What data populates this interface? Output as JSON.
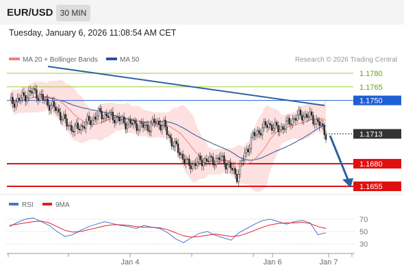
{
  "header": {
    "symbol": "EUR/USD",
    "timeframe": "30 MIN",
    "datetime": "Tuesday, January 6, 2026 11:08:54 AM CET"
  },
  "legend": {
    "ma20_label": "MA 20 + Bollinger Bands",
    "ma50_label": "MA 50",
    "copyright": "Research © 2026 Trading Central"
  },
  "rsi_legend": {
    "rsi_label": "RSI",
    "ma_label": "9MA"
  },
  "colors": {
    "ma20": "#f08080",
    "ma50": "#2f4f9a",
    "bollinger_fill": "#fde0e0",
    "resistance_green": "#9acd32",
    "resistance_blue": "#1f5fd6",
    "support_red": "#e01010",
    "current_price_bg": "#333333",
    "trend_arrow": "#2f5fa0",
    "rsi_line": "#4a72d0",
    "rsi_ma_line": "#e02020",
    "candle": "#222222"
  },
  "chart_data": [
    {
      "type": "line",
      "title": "",
      "instrument": "EUR/USD",
      "interval": "30 MIN",
      "x_ticks": [
        "Jan 4",
        "Jan 6",
        "Jan 7"
      ],
      "ylim": [
        1.164,
        1.18
      ],
      "price_levels": [
        {
          "label": "1.1780",
          "value": 1.178,
          "kind": "resistance",
          "color": "#9acd32"
        },
        {
          "label": "1.1765",
          "value": 1.1765,
          "kind": "resistance",
          "color": "#9acd32"
        },
        {
          "label": "1.1750",
          "value": 1.175,
          "kind": "resistance",
          "color": "#1f5fd6"
        },
        {
          "label": "1.1713",
          "value": 1.1713,
          "kind": "current",
          "color": "#333333"
        },
        {
          "label": "1.1680",
          "value": 1.168,
          "kind": "support",
          "color": "#e01010"
        },
        {
          "label": "1.1655",
          "value": 1.1655,
          "kind": "support",
          "color": "#e01010"
        }
      ],
      "series": [
        {
          "name": "MA 20 + Bollinger Bands",
          "color": "#f08080"
        },
        {
          "name": "MA 50",
          "color": "#2f4f9a"
        }
      ],
      "price_path": [
        1.1747,
        1.175,
        1.1756,
        1.176,
        1.1752,
        1.1745,
        1.1738,
        1.1724,
        1.1718,
        1.1722,
        1.1728,
        1.1735,
        1.1733,
        1.1731,
        1.1726,
        1.1724,
        1.1722,
        1.172,
        1.1726,
        1.1722,
        1.1704,
        1.1692,
        1.1678,
        1.1681,
        1.1684,
        1.1683,
        1.1686,
        1.1678,
        1.1666,
        1.169,
        1.171,
        1.1718,
        1.1724,
        1.1718,
        1.1722,
        1.173,
        1.1734,
        1.1732,
        1.1726,
        1.1713
      ]
    },
    {
      "type": "line",
      "title": "",
      "ylim": [
        20,
        80
      ],
      "y_ticks": [
        70,
        50,
        30
      ],
      "series": [
        {
          "name": "RSI",
          "color": "#4a72d0",
          "values": [
            58,
            65,
            70,
            72,
            66,
            60,
            50,
            42,
            45,
            52,
            58,
            62,
            66,
            63,
            60,
            58,
            55,
            60,
            57,
            55,
            48,
            38,
            32,
            40,
            47,
            50,
            44,
            40,
            36,
            48,
            55,
            62,
            68,
            70,
            66,
            62,
            66,
            68,
            64,
            45,
            48
          ]
        },
        {
          "name": "9MA",
          "color": "#e02020",
          "values": [
            60,
            62,
            64,
            66,
            67,
            64,
            58,
            52,
            49,
            50,
            53,
            56,
            59,
            61,
            61,
            60,
            58,
            57,
            57,
            56,
            53,
            48,
            43,
            41,
            42,
            44,
            46,
            44,
            42,
            43,
            47,
            52,
            57,
            61,
            63,
            64,
            64,
            65,
            63,
            58,
            55
          ]
        }
      ]
    }
  ]
}
